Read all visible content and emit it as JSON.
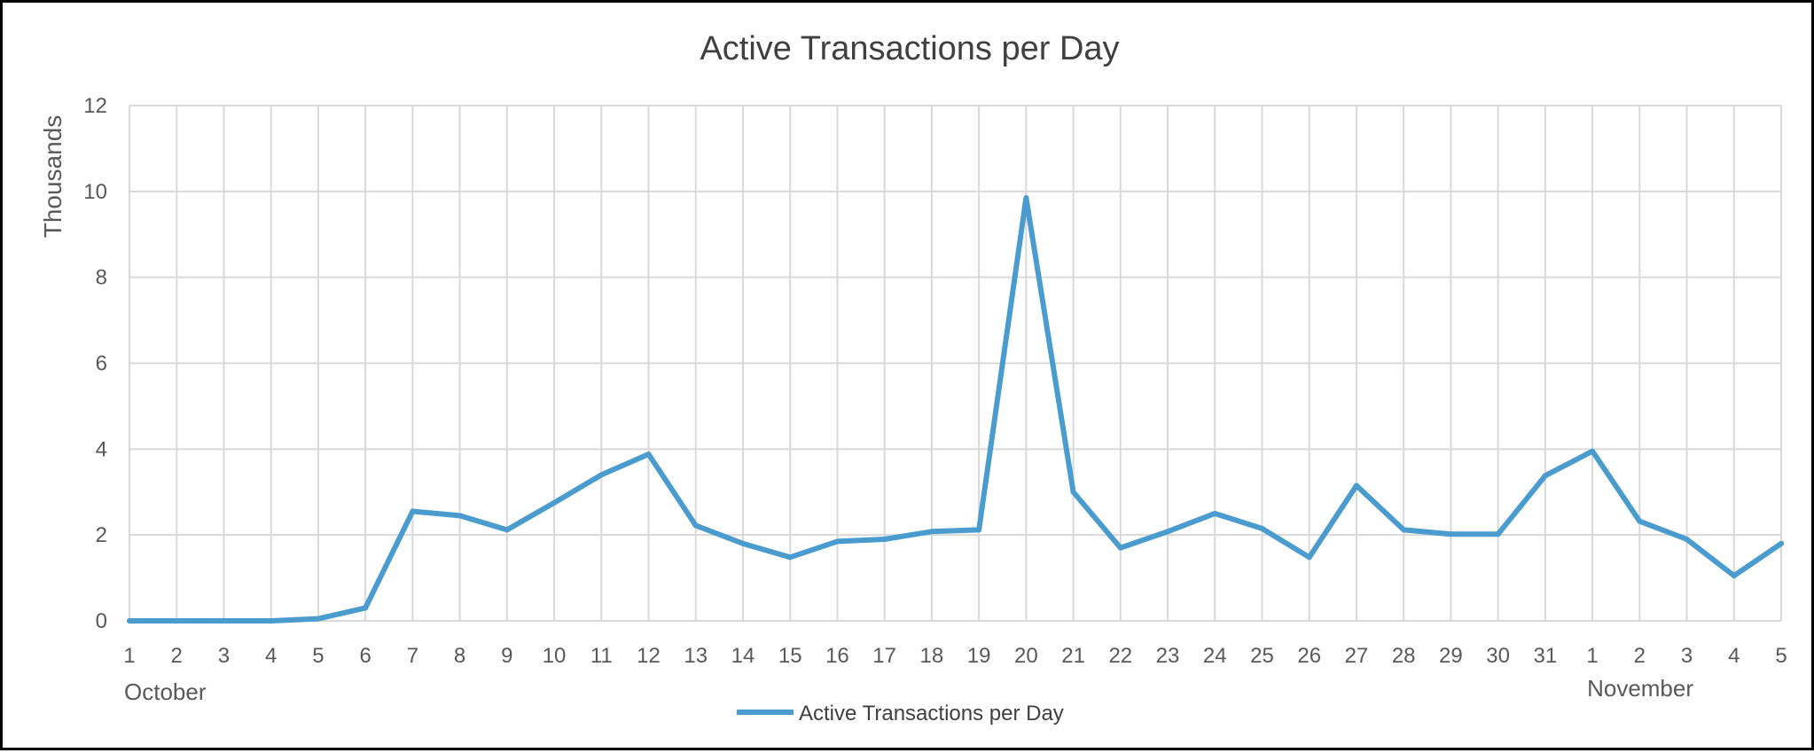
{
  "chart_data": {
    "type": "line",
    "title": "Active Transactions per Day",
    "ylabel": "Thousands",
    "xlabel": "",
    "ylim": [
      0,
      12
    ],
    "yticks": [
      "0",
      "2",
      "4",
      "6",
      "8",
      "10",
      "12"
    ],
    "grid": true,
    "legend_position": "bottom",
    "categories": [
      "1",
      "2",
      "3",
      "4",
      "5",
      "6",
      "7",
      "8",
      "9",
      "10",
      "11",
      "12",
      "13",
      "14",
      "15",
      "16",
      "17",
      "18",
      "19",
      "20",
      "21",
      "22",
      "23",
      "24",
      "25",
      "26",
      "27",
      "28",
      "29",
      "30",
      "31",
      "1",
      "2",
      "3",
      "4",
      "5"
    ],
    "category_groups": [
      {
        "label": "October",
        "start_index": 0
      },
      {
        "label": "November",
        "start_index": 31
      }
    ],
    "series": [
      {
        "name": "Active Transactions per Day",
        "color": "#4a9ccf",
        "values": [
          0,
          0,
          0,
          0,
          0.05,
          0.3,
          2.55,
          2.45,
          2.12,
          2.75,
          3.4,
          3.88,
          2.22,
          1.8,
          1.48,
          1.85,
          1.9,
          2.08,
          2.12,
          9.85,
          3.0,
          1.7,
          2.08,
          2.5,
          2.15,
          1.48,
          3.15,
          2.12,
          2.02,
          2.02,
          3.38,
          3.95,
          2.32,
          1.9,
          1.05,
          1.8
        ]
      }
    ]
  }
}
